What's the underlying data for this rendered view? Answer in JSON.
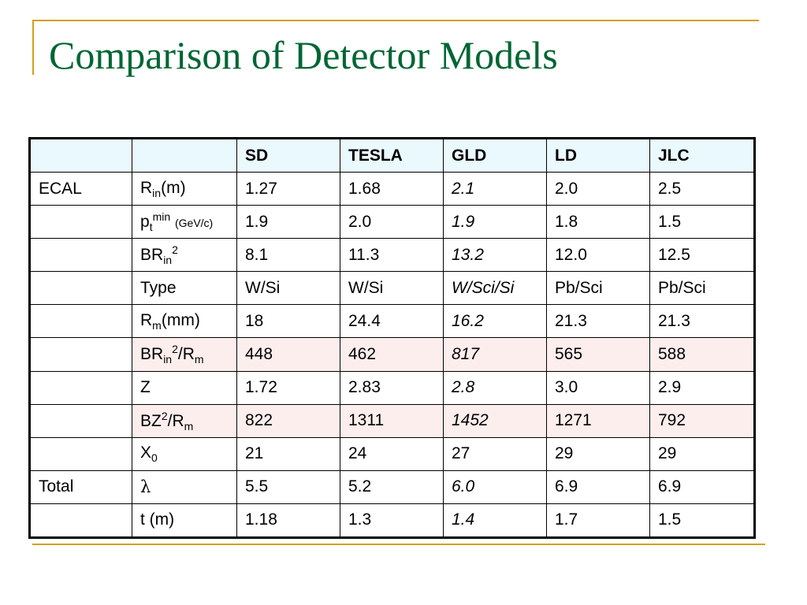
{
  "title": "Comparison of Detector Models",
  "colors": {
    "title": "#006633",
    "accent_rule": "#d4a017",
    "header_bg": "#eaf9fe",
    "highlight_bg": "#fdeeee",
    "gld_blue": "#0000ff",
    "gld_green": "#00aa00"
  },
  "table": {
    "headers": [
      "",
      "",
      "SD",
      "TESLA",
      "GLD",
      "LD",
      "JLC"
    ],
    "rows": [
      {
        "group": "ECAL",
        "param_base": "R",
        "param_sub": "in",
        "param_tail": "(m)",
        "values": [
          "1.27",
          "1.68",
          "2.1",
          "2.0",
          "2.5"
        ]
      },
      {
        "group": "",
        "param_base": "p",
        "param_sub": "t",
        "param_sup": "min",
        "param_unit": "(GeV/c)",
        "values": [
          "1.9",
          "2.0",
          "1.9",
          "1.8",
          "1.5"
        ]
      },
      {
        "group": "",
        "param_base": "BR",
        "param_sub": "in",
        "param_sup": "2",
        "values": [
          "8.1",
          "11.3",
          "13.2",
          "12.0",
          "12.5"
        ]
      },
      {
        "group": "",
        "param_base": "Type",
        "values": [
          "W/Si",
          "W/Si",
          "W/Sci/Si",
          "Pb/Sci",
          "Pb/Sci"
        ]
      },
      {
        "group": "",
        "param_base": "R",
        "param_sub": "m",
        "param_tail": "(mm)",
        "values": [
          "18",
          "24.4",
          "16.2",
          "21.3",
          "21.3"
        ]
      },
      {
        "group": "",
        "param_base": "BR",
        "param_sub": "in",
        "param_sup": "2",
        "param_tail": "/R",
        "param_sub2": "m",
        "values": [
          "448",
          "462",
          "817",
          "565",
          "588"
        ]
      },
      {
        "group": "",
        "param_base": "Z",
        "values": [
          "1.72",
          "2.83",
          "2.8",
          "3.0",
          "2.9"
        ]
      },
      {
        "group": "",
        "param_base": "BZ",
        "param_sup": "2",
        "param_tail": "/R",
        "param_sub2": "m",
        "values": [
          "822",
          "1311",
          "1452",
          "1271",
          "792"
        ]
      },
      {
        "group": "",
        "param_base": "X",
        "param_sub": "0",
        "values": [
          "21",
          "24",
          "27",
          "29",
          "29"
        ]
      },
      {
        "group": "Total",
        "param_base": "λ",
        "values": [
          "5.5",
          "5.2",
          "6.0",
          "6.9",
          "6.9"
        ]
      },
      {
        "group": "",
        "param_base": "t (m)",
        "values": [
          "1.18",
          "1.3",
          "1.4",
          "1.7",
          "1.5"
        ]
      }
    ]
  }
}
